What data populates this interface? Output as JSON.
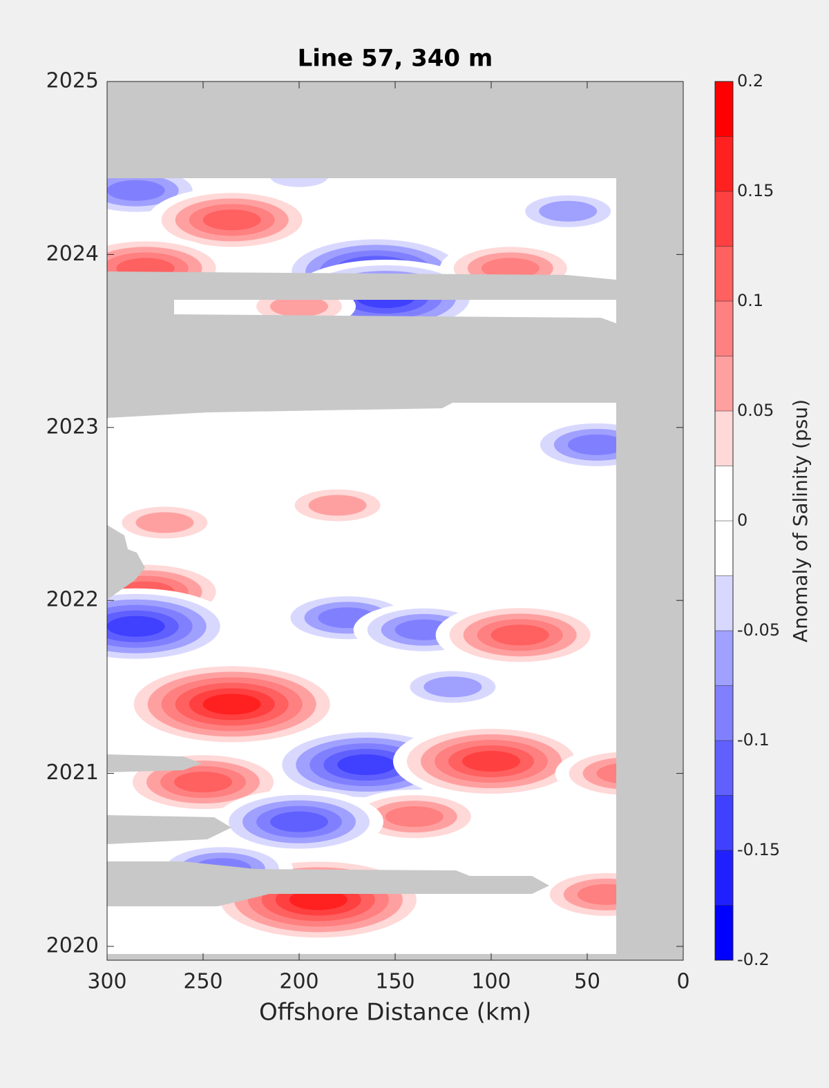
{
  "chart_data": {
    "type": "contour",
    "title": "Line 57, 340 m",
    "xlabel": "Offshore Distance (km)",
    "colorbar_label": "Anomaly of Salinity (psu)",
    "xlim": [
      300,
      0
    ],
    "xticks": [
      300,
      250,
      200,
      150,
      100,
      50,
      0
    ],
    "ylim": [
      2019.92,
      2025
    ],
    "yticks": [
      2020,
      2021,
      2022,
      2023,
      2024,
      2025
    ],
    "clim": [
      -0.2,
      0.2
    ],
    "cticks": [
      -0.2,
      -0.15,
      -0.1,
      -0.05,
      0,
      0.05,
      0.1,
      0.15,
      0.2
    ],
    "levels": [
      -0.2,
      -0.175,
      -0.15,
      -0.125,
      -0.1,
      -0.075,
      -0.05,
      -0.025,
      0,
      0.025,
      0.05,
      0.075,
      0.1,
      0.125,
      0.15,
      0.175,
      0.2
    ],
    "colormap": [
      "#0000ff",
      "#2020ff",
      "#4040ff",
      "#6060ff",
      "#8080ff",
      "#a0a0ff",
      "#d8d8ff",
      "#ffffff",
      "#ffffff",
      "#ffd8d8",
      "#ffa0a0",
      "#ff8080",
      "#ff6060",
      "#ff4040",
      "#ff2020",
      "#ff0000"
    ],
    "x": [
      285,
      235,
      280,
      160,
      155,
      200,
      60,
      90,
      200,
      45,
      270,
      180,
      280,
      285,
      175,
      135,
      85,
      235,
      165,
      100,
      250,
      140,
      200,
      190,
      240,
      120,
      40,
      30
    ],
    "y": [
      2024.37,
      2024.2,
      2023.92,
      2023.9,
      2023.75,
      2024.45,
      2024.25,
      2023.92,
      2023.7,
      2022.9,
      2022.45,
      2022.55,
      2022.05,
      2021.85,
      2021.9,
      2021.83,
      2021.8,
      2021.4,
      2021.05,
      2021.07,
      2020.95,
      2020.75,
      2020.72,
      2020.27,
      2020.45,
      2021.5,
      2020.3,
      2021.0
    ],
    "values": [
      -0.1,
      0.1,
      0.12,
      -0.15,
      -0.15,
      -0.05,
      -0.07,
      0.08,
      0.06,
      -0.08,
      0.06,
      0.07,
      0.1,
      -0.13,
      -0.1,
      -0.1,
      0.1,
      0.15,
      -0.14,
      0.14,
      0.12,
      0.09,
      -0.12,
      0.15,
      -0.1,
      -0.07,
      0.09,
      0.08
    ]
  }
}
